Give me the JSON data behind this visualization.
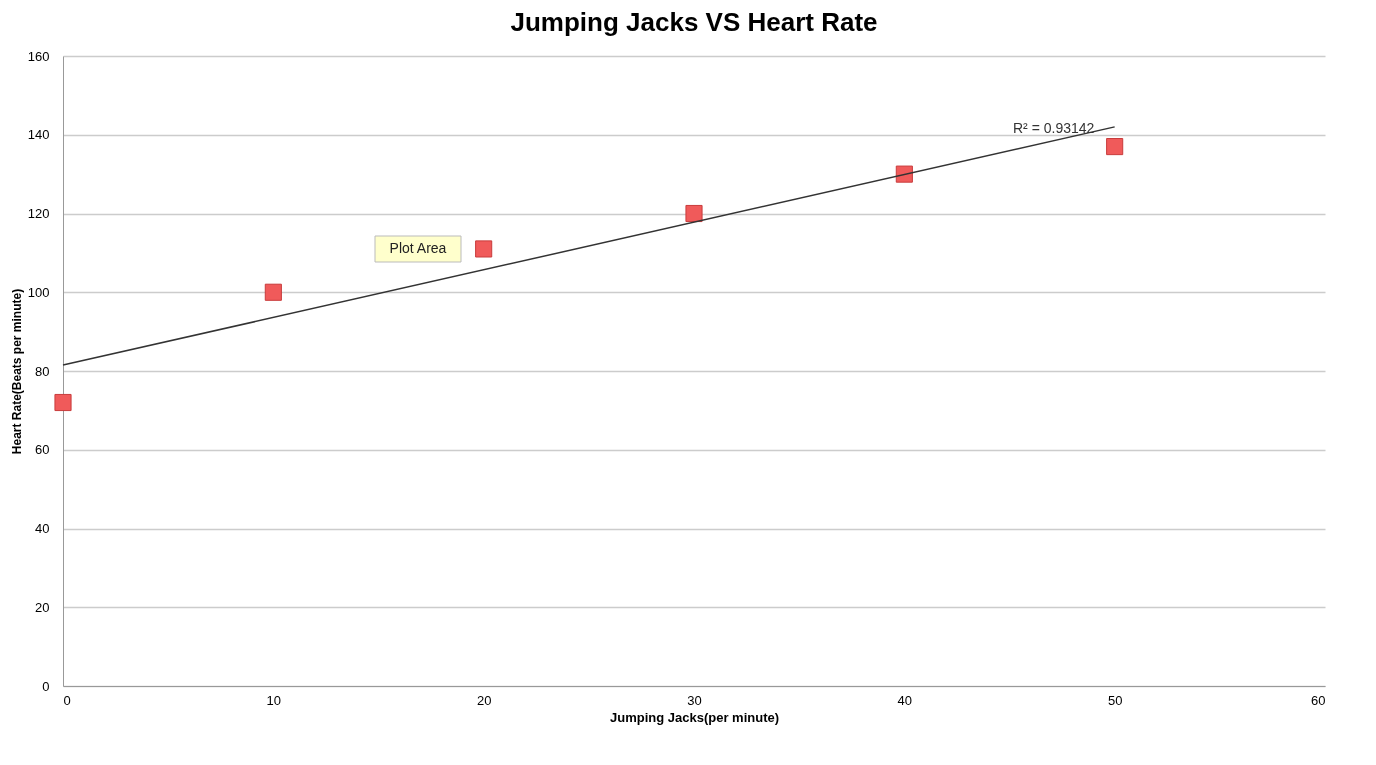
{
  "chart_data": {
    "type": "scatter",
    "title": "Jumping Jacks VS Heart Rate",
    "xlabel": "Jumping Jacks(per minute)",
    "ylabel": "Heart Rate(Beats per minute)",
    "x": [
      0,
      10,
      20,
      30,
      40,
      50
    ],
    "series": [
      {
        "color": "#f05a5a",
        "marker": "square",
        "values": [
          72,
          100,
          111,
          120,
          130,
          137
        ]
      },
      {
        "type": "line",
        "color": "#333333",
        "x": [
          0,
          50
        ],
        "values": [
          81.5,
          142
        ]
      }
    ],
    "annotations": [
      "R² = 0.93142",
      "Plot Area"
    ],
    "xlim": [
      0,
      60
    ],
    "xticks": [
      0,
      10,
      20,
      30,
      40,
      50,
      60
    ],
    "ylim": [
      0,
      160
    ],
    "yticks": [
      0,
      20,
      40,
      60,
      80,
      100,
      120,
      140,
      160
    ],
    "grid": "y"
  }
}
